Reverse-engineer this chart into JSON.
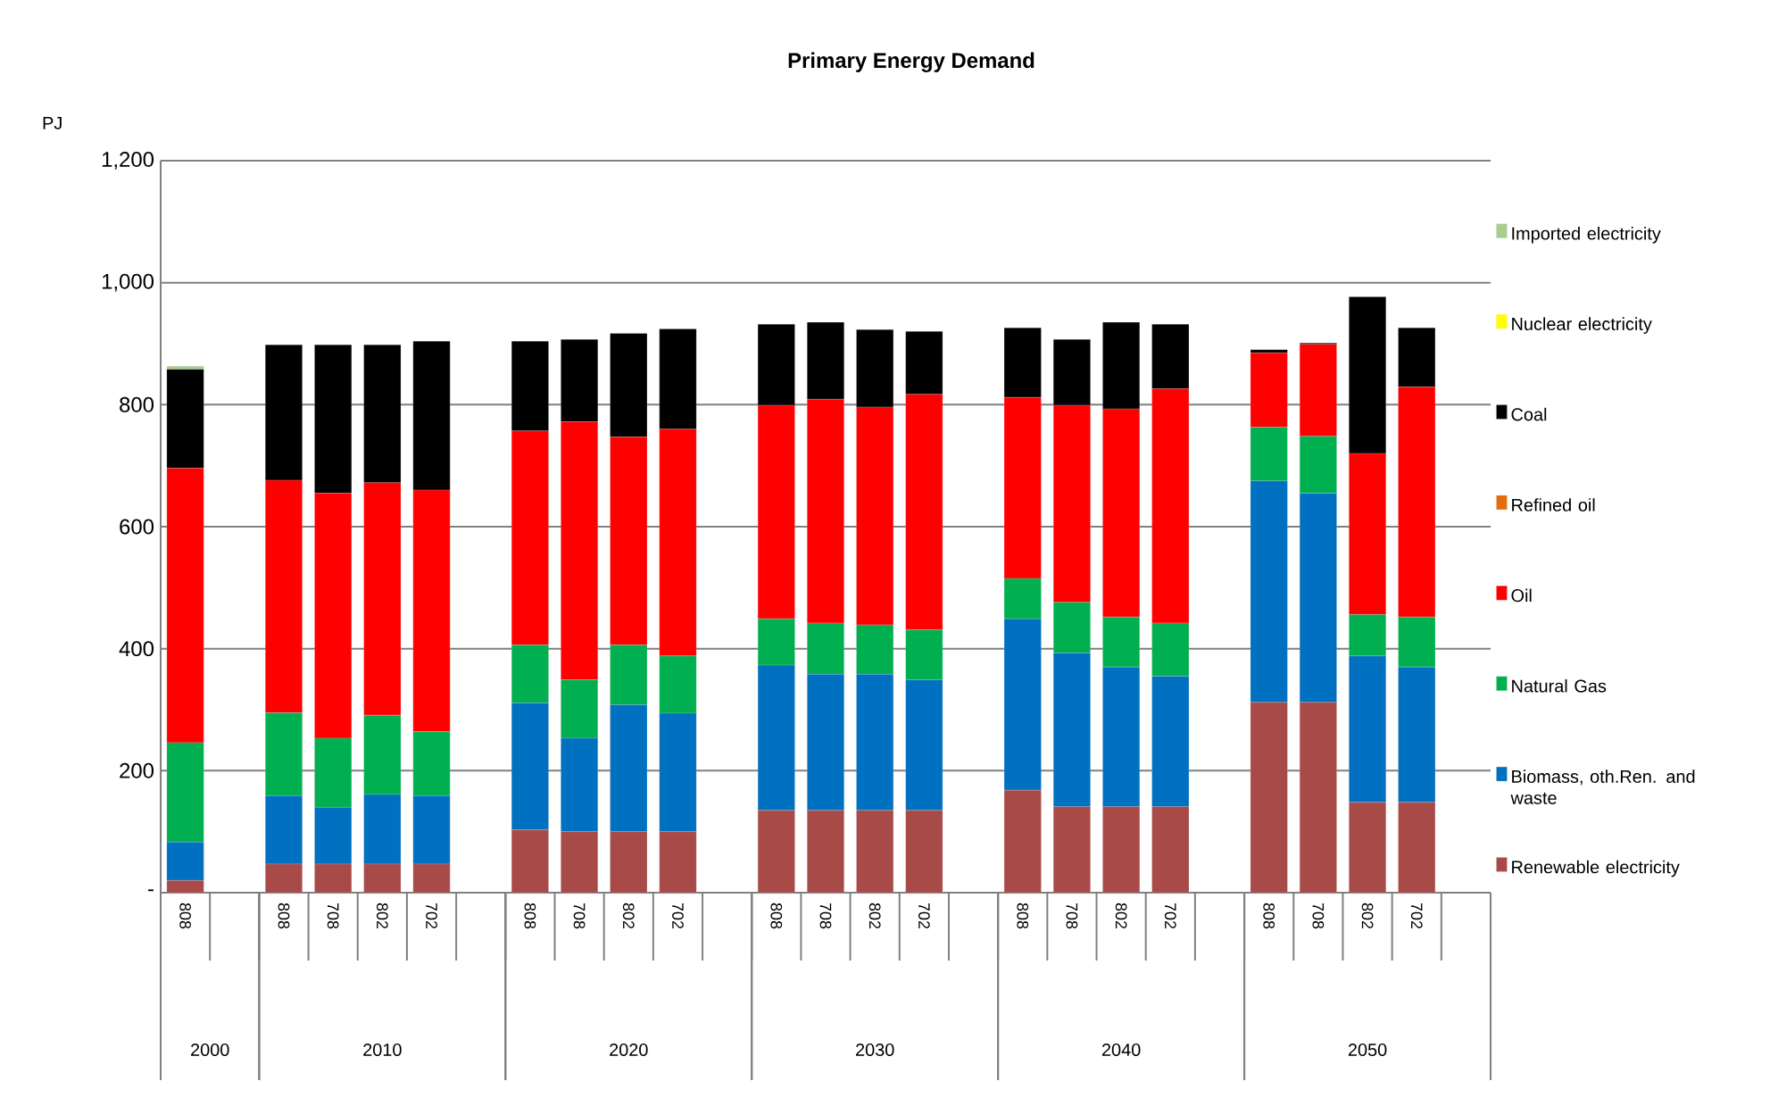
{
  "chart_data": {
    "type": "bar",
    "title": "Primary Energy Demand",
    "ylabel": "PJ",
    "stacked": true,
    "grid": "y",
    "legend": "right",
    "categories": [
      "808",
      null,
      "808",
      "708",
      "802",
      "702",
      null,
      "808",
      "708",
      "802",
      "702",
      null,
      "808",
      "708",
      "802",
      "702",
      null,
      "808",
      "708",
      "802",
      "702",
      null,
      "808",
      "708",
      "802",
      "702",
      null
    ],
    "annotations": [
      "2000",
      "2010",
      "2020",
      "2030",
      "2040",
      "2050"
    ],
    "ylim": [
      0,
      1200
    ],
    "yticks": [
      {
        "value": 0,
        "label": "-"
      },
      200,
      400,
      600,
      800,
      {
        "value": 1000,
        "label": "1,000"
      },
      {
        "value": 1200,
        "label": "1,200"
      }
    ],
    "series": [
      {
        "name": "Renewable electricity",
        "color": "#a84a47",
        "values": [
          20,
          null,
          47,
          47,
          47,
          47,
          null,
          103,
          100,
          100,
          100,
          null,
          135,
          135,
          135,
          135,
          null,
          168,
          141,
          141,
          141,
          null,
          312,
          312,
          148,
          148,
          null
        ]
      },
      {
        "name": "Biomass, oth.Ren. and waste",
        "color": "#0070c0",
        "values": [
          63,
          null,
          112,
          93,
          114,
          112,
          null,
          208,
          153,
          208,
          194,
          null,
          238,
          223,
          223,
          214,
          null,
          281,
          252,
          229,
          214,
          null,
          363,
          343,
          240,
          222,
          null
        ]
      },
      {
        "name": "Natural Gas",
        "color": "#00b050",
        "values": [
          163,
          null,
          136,
          113,
          130,
          105,
          null,
          95,
          96,
          98,
          94,
          null,
          76,
          84,
          81,
          82,
          null,
          66,
          83,
          82,
          87,
          null,
          88,
          93,
          68,
          82,
          null
        ]
      },
      {
        "name": "Oil",
        "color": "#ff0000",
        "values": [
          450,
          null,
          381,
          402,
          381,
          396,
          null,
          351,
          423,
          341,
          372,
          null,
          350,
          367,
          357,
          386,
          null,
          297,
          323,
          341,
          384,
          null,
          122,
          151,
          264,
          377,
          null
        ]
      },
      {
        "name": "Refined oil",
        "color": "#e46c0a",
        "values": [
          0,
          null,
          0,
          0,
          0,
          0,
          null,
          0,
          0,
          0,
          0,
          null,
          0,
          0,
          0,
          0,
          null,
          0,
          0,
          0,
          0,
          null,
          0,
          0,
          0,
          0,
          null
        ]
      },
      {
        "name": "Coal",
        "color": "#000000",
        "values": [
          162,
          null,
          222,
          243,
          226,
          244,
          null,
          147,
          135,
          170,
          164,
          null,
          133,
          126,
          127,
          103,
          null,
          114,
          108,
          142,
          106,
          null,
          5,
          2,
          257,
          97,
          null
        ]
      },
      {
        "name": "Nuclear electricity",
        "color": "#ffff00",
        "values": [
          0,
          null,
          0,
          0,
          0,
          0,
          null,
          0,
          0,
          0,
          0,
          null,
          0,
          0,
          0,
          0,
          null,
          0,
          0,
          0,
          0,
          null,
          0,
          0,
          0,
          0,
          null
        ]
      },
      {
        "name": "Imported electricity",
        "color": "#a9cc8f",
        "values": [
          5,
          null,
          0,
          0,
          0,
          0,
          null,
          0,
          0,
          0,
          0,
          null,
          0,
          0,
          0,
          0,
          null,
          0,
          0,
          0,
          0,
          null,
          0,
          0,
          0,
          0,
          null
        ]
      }
    ]
  }
}
